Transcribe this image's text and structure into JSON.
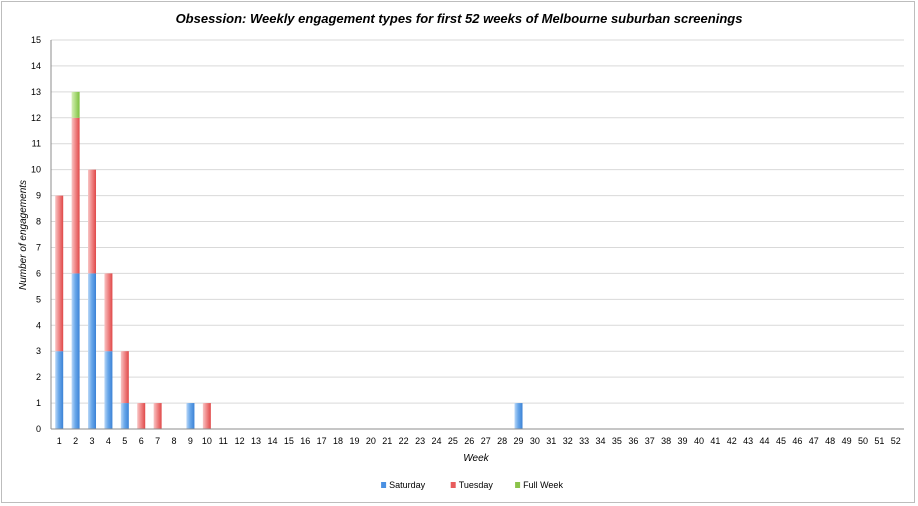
{
  "chart_data": {
    "type": "bar",
    "stacked": true,
    "title": "Obsession: Weekly engagement types for first 52 weeks of Melbourne suburban screenings",
    "xlabel": "Week",
    "ylabel": "Number of engagements",
    "ylim": [
      0,
      15
    ],
    "ytick_step": 1,
    "grid": true,
    "legend_position": "bottom",
    "categories": [
      "1",
      "2",
      "3",
      "4",
      "5",
      "6",
      "7",
      "8",
      "9",
      "10",
      "11",
      "12",
      "13",
      "14",
      "15",
      "16",
      "17",
      "18",
      "19",
      "20",
      "21",
      "22",
      "23",
      "24",
      "25",
      "26",
      "27",
      "28",
      "29",
      "30",
      "31",
      "32",
      "33",
      "34",
      "35",
      "36",
      "37",
      "38",
      "39",
      "40",
      "41",
      "42",
      "43",
      "44",
      "45",
      "46",
      "47",
      "48",
      "49",
      "50",
      "51",
      "52"
    ],
    "series": [
      {
        "name": "Saturday",
        "color": "#4a90e2",
        "values": [
          3,
          6,
          6,
          3,
          1,
          0,
          0,
          0,
          1,
          0,
          0,
          0,
          0,
          0,
          0,
          0,
          0,
          0,
          0,
          0,
          0,
          0,
          0,
          0,
          0,
          0,
          0,
          0,
          1,
          0,
          0,
          0,
          0,
          0,
          0,
          0,
          0,
          0,
          0,
          0,
          0,
          0,
          0,
          0,
          0,
          0,
          0,
          0,
          0,
          0,
          0,
          0
        ]
      },
      {
        "name": "Tuesday",
        "color": "#e85c5c",
        "values": [
          6,
          6,
          4,
          3,
          2,
          1,
          1,
          0,
          0,
          1,
          0,
          0,
          0,
          0,
          0,
          0,
          0,
          0,
          0,
          0,
          0,
          0,
          0,
          0,
          0,
          0,
          0,
          0,
          0,
          0,
          0,
          0,
          0,
          0,
          0,
          0,
          0,
          0,
          0,
          0,
          0,
          0,
          0,
          0,
          0,
          0,
          0,
          0,
          0,
          0,
          0,
          0
        ]
      },
      {
        "name": "Full Week",
        "color": "#8bc34a",
        "values": [
          0,
          1,
          0,
          0,
          0,
          0,
          0,
          0,
          0,
          0,
          0,
          0,
          0,
          0,
          0,
          0,
          0,
          0,
          0,
          0,
          0,
          0,
          0,
          0,
          0,
          0,
          0,
          0,
          0,
          0,
          0,
          0,
          0,
          0,
          0,
          0,
          0,
          0,
          0,
          0,
          0,
          0,
          0,
          0,
          0,
          0,
          0,
          0,
          0,
          0,
          0,
          0
        ]
      }
    ]
  }
}
